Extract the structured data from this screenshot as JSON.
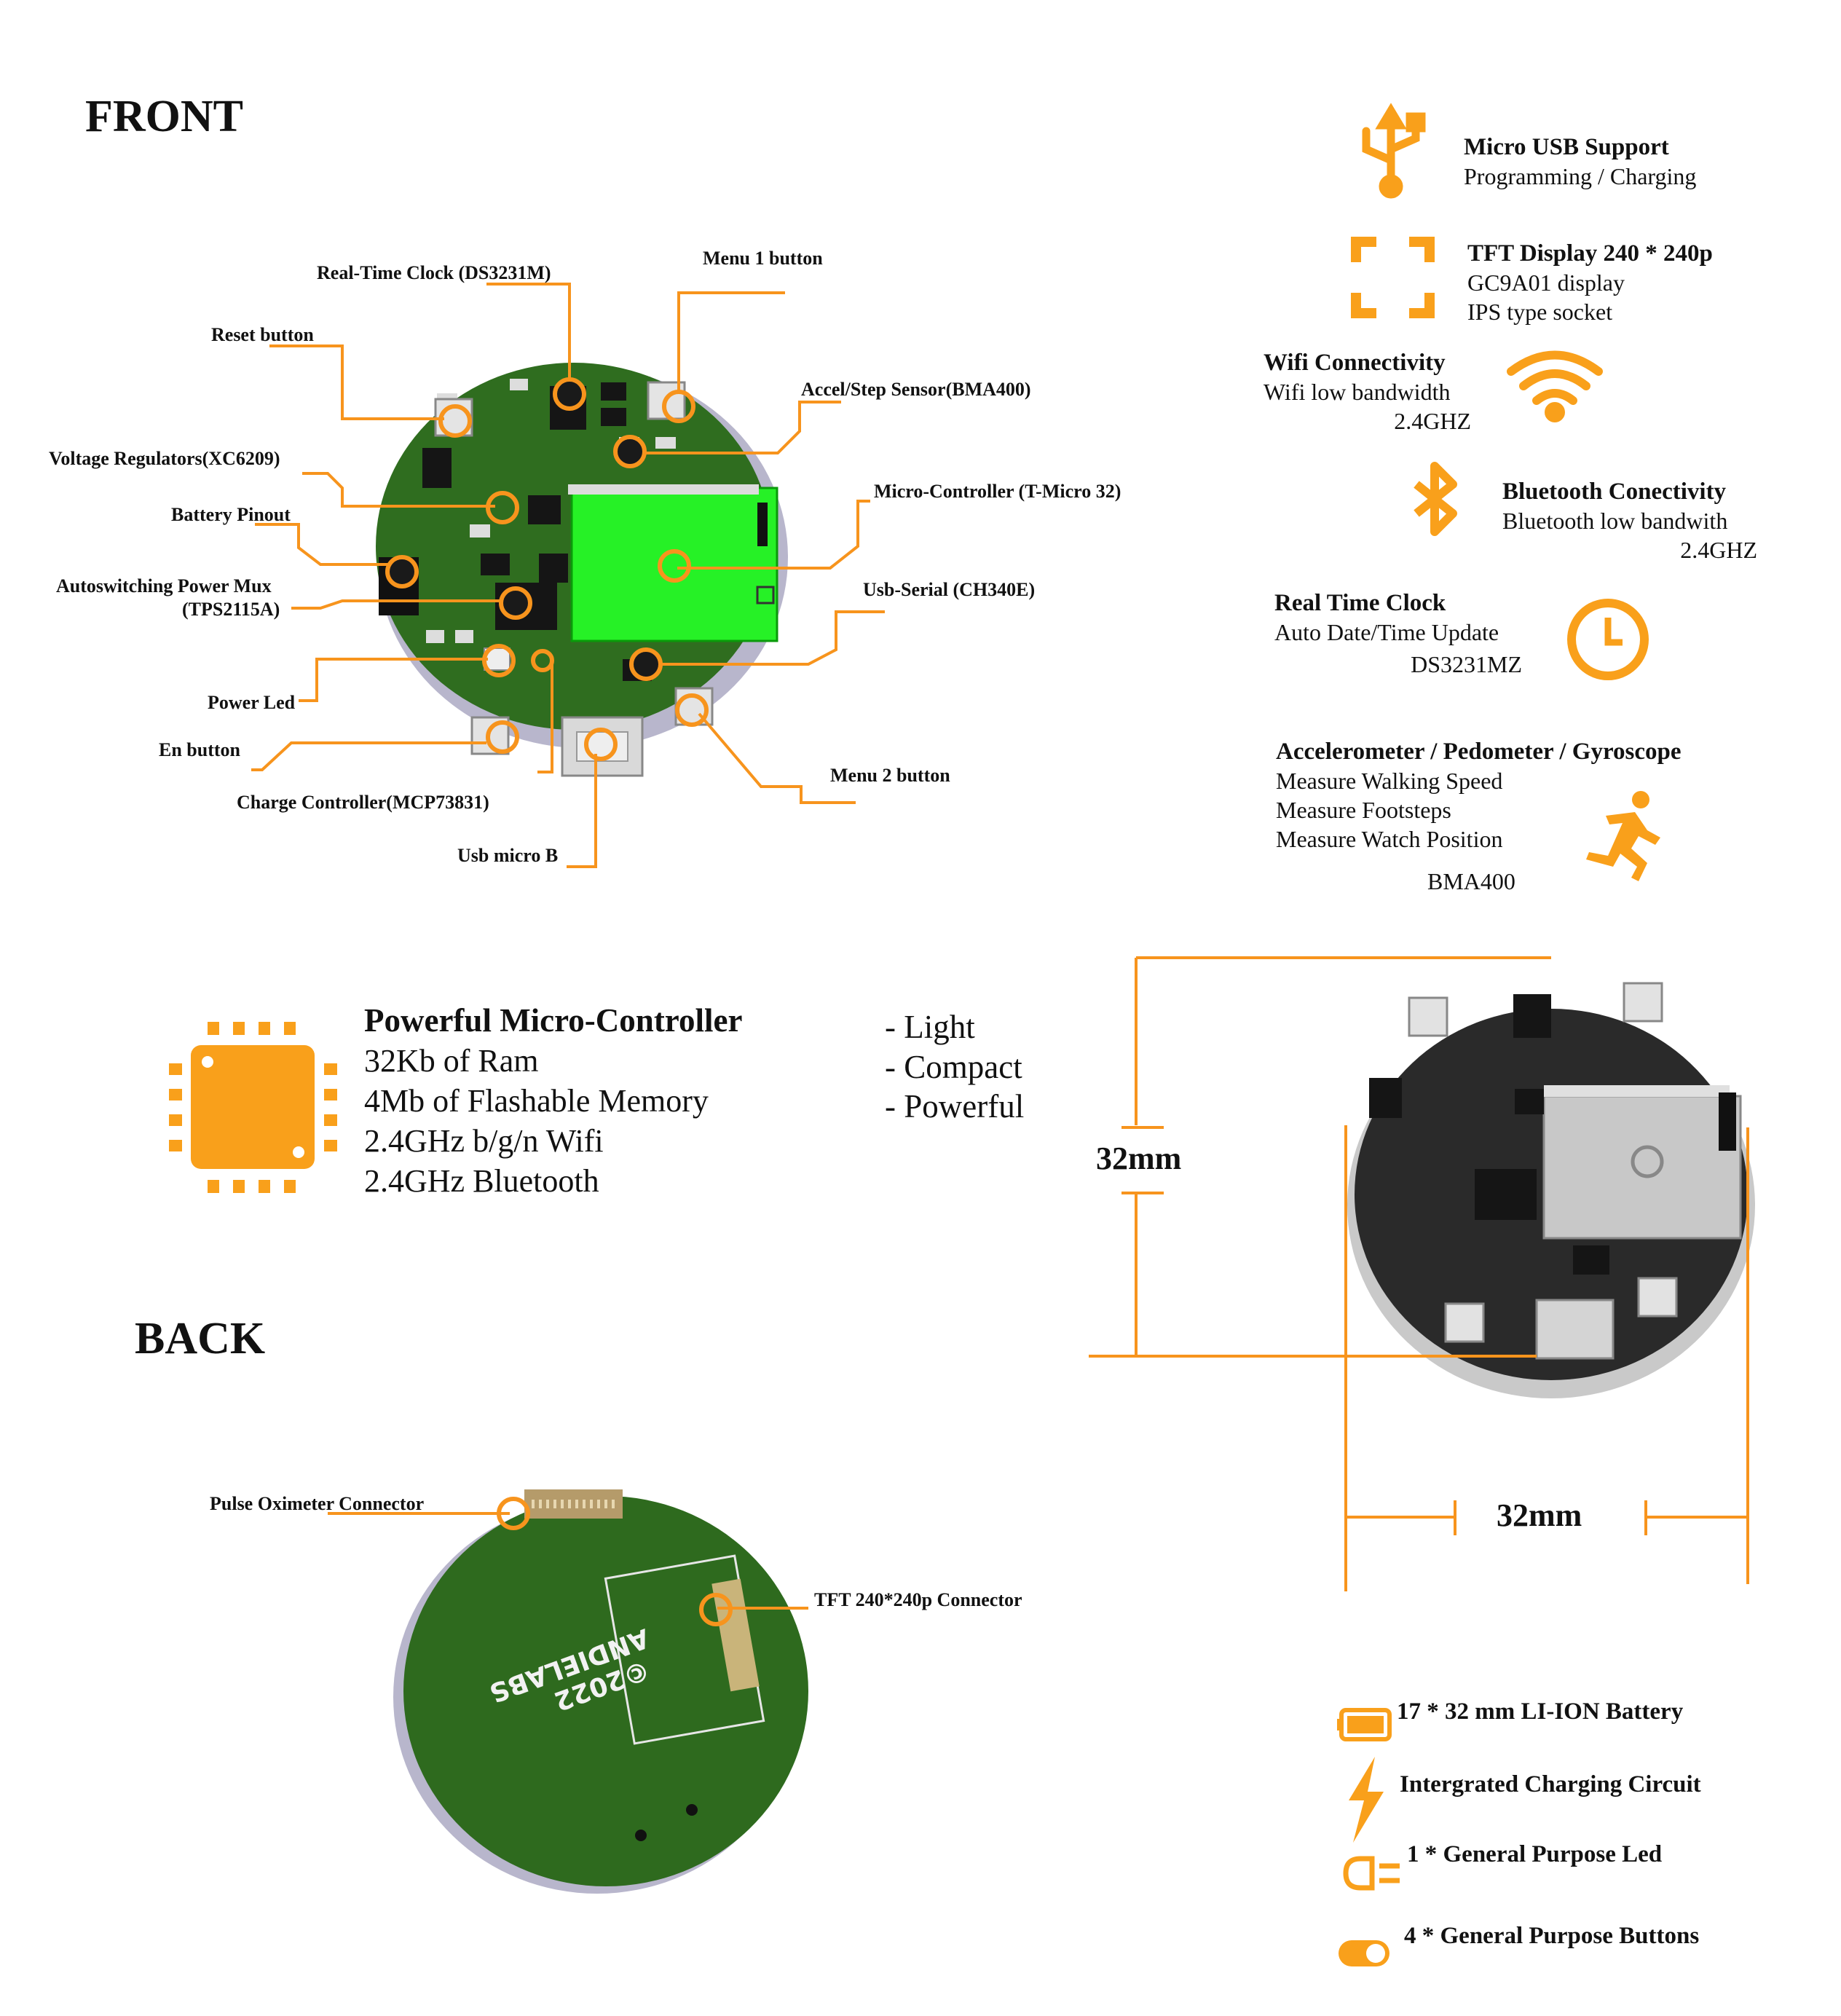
{
  "headings": {
    "front": "FRONT",
    "back": "BACK"
  },
  "front_callouts": [
    "Real-Time Clock (DS3231M)",
    "Menu 1 button",
    "Reset button",
    "Accel/Step Sensor(BMA400)",
    "Voltage Regulators(XC6209)",
    "Micro-Controller (T-Micro  32)",
    "Battery Pinout",
    "Autoswitching Power Mux",
    "(TPS2115A)",
    "Usb-Serial (CH340E)",
    "Power Led",
    "En button",
    "Menu 2 button",
    "Charge Controller(MCP73831)",
    "Usb micro B"
  ],
  "back_callouts": [
    "Pulse Oximeter Connector",
    "TFT 240*240p Connector"
  ],
  "features": {
    "usb": {
      "title": "Micro USB Support",
      "lines": [
        "Programming / Charging"
      ]
    },
    "display": {
      "title": "TFT Display 240 * 240p",
      "lines": [
        "GC9A01 display",
        "IPS type socket"
      ]
    },
    "wifi": {
      "title": "Wifi Connectivity",
      "lines": [
        "Wifi low bandwidth",
        "2.4GHZ"
      ]
    },
    "bluetooth": {
      "title": "Bluetooth Conectivity",
      "lines": [
        "Bluetooth low bandwith",
        "2.4GHZ"
      ]
    },
    "rtc": {
      "title": "Real Time Clock",
      "lines": [
        "Auto Date/Time Update",
        "DS3231MZ"
      ]
    },
    "accel": {
      "title": "Accelerometer / Pedometer / Gyroscope",
      "lines": [
        "Measure Walking Speed",
        "Measure Footsteps",
        "Measure Watch Position",
        "BMA400"
      ]
    }
  },
  "mcu": {
    "title": "Powerful Micro-Controller",
    "lines": [
      "32Kb of Ram",
      "4Mb of Flashable Memory",
      "2.4GHz b/g/n Wifi",
      "2.4GHz Bluetooth"
    ]
  },
  "adjectives": [
    "- Light",
    "- Compact",
    "- Powerful"
  ],
  "dimensions": {
    "height": "32mm",
    "width": "32mm"
  },
  "bottom_list": [
    "17 * 32 mm LI-ION Battery",
    "Intergrated Charging Circuit",
    "1 * General Purpose Led",
    "4 * General Purpose Buttons"
  ],
  "colors": {
    "accent": "#F7941D",
    "icon": "#F9A01B",
    "pcb": "#2E6B1E",
    "module": "#1EEA1E"
  },
  "icons": [
    "usb-icon",
    "display-frame-icon",
    "wifi-icon",
    "bluetooth-icon",
    "clock-icon",
    "running-person-icon",
    "chip-icon",
    "battery-icon",
    "lightning-icon",
    "led-icon",
    "toggle-icon"
  ]
}
